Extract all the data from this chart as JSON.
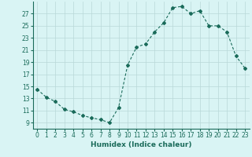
{
  "x": [
    0,
    1,
    2,
    3,
    4,
    5,
    6,
    7,
    8,
    9,
    10,
    11,
    12,
    13,
    14,
    15,
    16,
    17,
    18,
    19,
    20,
    21,
    22,
    23
  ],
  "y": [
    14.5,
    13.2,
    12.5,
    11.2,
    10.8,
    10.2,
    9.8,
    9.5,
    9.0,
    11.5,
    18.5,
    21.5,
    22.0,
    24.0,
    25.5,
    28.0,
    28.2,
    27.0,
    27.5,
    25.0,
    25.0,
    24.0,
    20.0,
    18.0
  ],
  "xlabel": "Humidex (Indice chaleur)",
  "ylabel": "",
  "xlim": [
    -0.5,
    23.5
  ],
  "ylim": [
    8,
    29
  ],
  "yticks": [
    9,
    11,
    13,
    15,
    17,
    19,
    21,
    23,
    25,
    27
  ],
  "xticks": [
    0,
    1,
    2,
    3,
    4,
    5,
    6,
    7,
    8,
    9,
    10,
    11,
    12,
    13,
    14,
    15,
    16,
    17,
    18,
    19,
    20,
    21,
    22,
    23
  ],
  "line_color": "#1a6b5a",
  "marker": "D",
  "marker_size": 2,
  "bg_color": "#d9f4f4",
  "grid_color": "#b8d8d8",
  "tick_fontsize": 5.5,
  "xlabel_fontsize": 6.5
}
